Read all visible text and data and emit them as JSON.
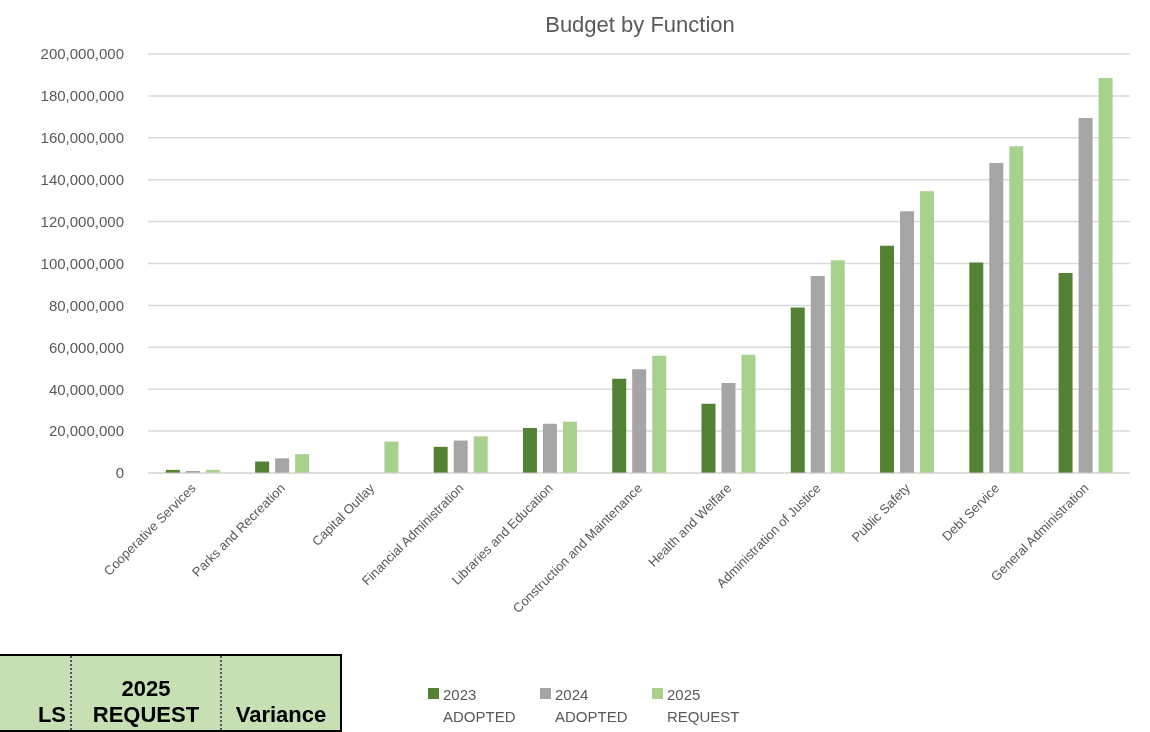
{
  "chart_data": {
    "type": "bar",
    "title": "Budget by Function",
    "categories": [
      "Cooperative Services",
      "Parks and Recreation",
      "Capital Outlay",
      "Financial Administration",
      "Libraries and Education",
      "Construction and Maintenance",
      "Health and Welfare",
      "Administration of Justice",
      "Public Safety",
      "Debt Service",
      "General Administration"
    ],
    "series": [
      {
        "name": "2023 ADOPTED",
        "color": "#548235",
        "values": [
          1500000,
          5500000,
          null,
          12500000,
          21500000,
          45000000,
          33000000,
          79000000,
          108500000,
          100500000,
          95500000
        ]
      },
      {
        "name": "2024 ADOPTED",
        "color": "#a5a5a5",
        "values": [
          1000000,
          7000000,
          null,
          15500000,
          23500000,
          49500000,
          43000000,
          94000000,
          125000000,
          148000000,
          169500000
        ]
      },
      {
        "name": "2025 REQUEST",
        "color": "#a9d18e",
        "values": [
          1500000,
          9000000,
          15000000,
          17500000,
          24500000,
          56000000,
          56500000,
          101500000,
          134500000,
          156000000,
          188500000
        ]
      }
    ],
    "ylim": [
      0,
      200000000
    ],
    "yticks": [
      0,
      {
        "value": 20000000,
        "label": "20,000,000"
      },
      {
        "value": 40000000,
        "label": "40,000,000"
      },
      {
        "value": 60000000,
        "label": "60,000,000"
      },
      {
        "value": 80000000,
        "label": "80,000,000"
      },
      {
        "value": 100000000,
        "label": "100,000,000"
      },
      {
        "value": 120000000,
        "label": "120,000,000"
      },
      {
        "value": 140000000,
        "label": "140,000,000"
      },
      {
        "value": 160000000,
        "label": "160,000,000"
      },
      {
        "value": 180000000,
        "label": "180,000,000"
      },
      {
        "value": 200000000,
        "label": "200,000,000"
      }
    ],
    "grid": "y",
    "legend": "bottom",
    "annotations": [
      "LS",
      "2025 REQUEST",
      "Variance"
    ]
  }
}
